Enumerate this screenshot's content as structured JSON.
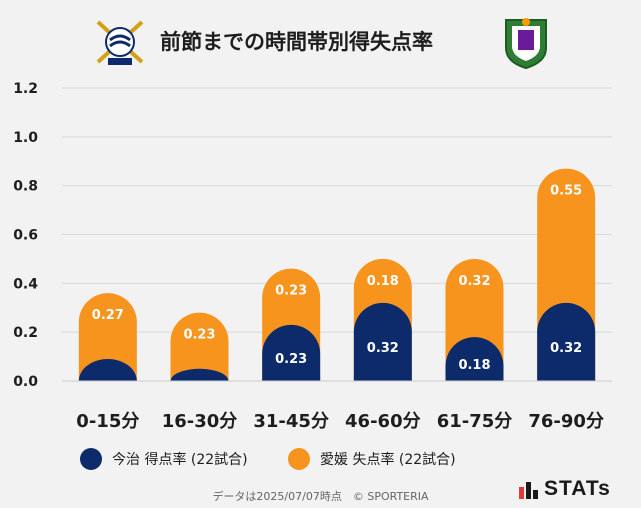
{
  "header": {
    "title": "前節までの時間帯別得失点率"
  },
  "colors": {
    "home": "#0d2a6b",
    "away": "#f7941d",
    "grid": "#d9d9d9",
    "background": "#f2f2f2"
  },
  "chart_data": {
    "type": "bar",
    "categories": [
      "0-15分",
      "16-30分",
      "31-45分",
      "46-60分",
      "61-75分",
      "76-90分"
    ],
    "series": [
      {
        "name": "今治 得点率 (22試合)",
        "values": [
          0.09,
          0.05,
          0.23,
          0.32,
          0.18,
          0.32
        ],
        "labels": [
          "",
          "",
          "0.23",
          "0.32",
          "0.18",
          "0.32"
        ],
        "color": "#0d2a6b"
      },
      {
        "name": "愛媛 失点率 (22試合)",
        "values": [
          0.27,
          0.23,
          0.23,
          0.18,
          0.32,
          0.55
        ],
        "labels": [
          "0.27",
          "0.23",
          "0.23",
          "0.18",
          "0.32",
          "0.55"
        ],
        "color": "#f7941d"
      }
    ],
    "stacked": true,
    "yticks": [
      "0.0",
      "0.2",
      "0.4",
      "0.6",
      "0.8",
      "1.0",
      "1.2"
    ],
    "ylim": [
      0,
      1.2
    ],
    "grid": true,
    "legend_position": "bottom"
  },
  "legend": {
    "home_label": "今治 得点率 (22試合)",
    "away_label": "愛媛 失点率 (22試合)"
  },
  "footer": {
    "text": "データは2025/07/07時点　© SPORTERIA"
  },
  "brand": {
    "name": "STATs"
  }
}
